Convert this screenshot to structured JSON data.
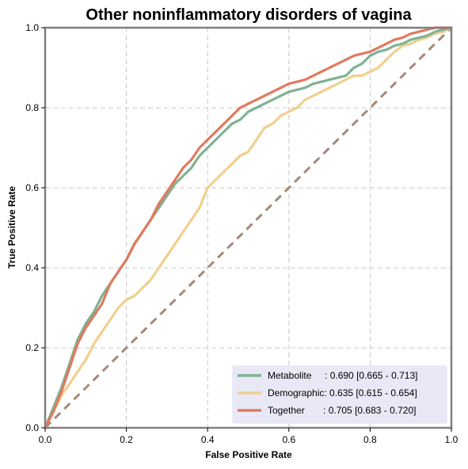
{
  "chart_data": {
    "type": "line",
    "title": "Other noninflammatory disorders of vagina",
    "xlabel": "False Positive Rate",
    "ylabel": "True Positive Rate",
    "xlim": [
      0,
      1
    ],
    "ylim": [
      0,
      1
    ],
    "xticks": [
      "0.0",
      "0.2",
      "0.4",
      "0.6",
      "0.8",
      "1.0"
    ],
    "yticks": [
      "0.0",
      "0.2",
      "0.4",
      "0.6",
      "0.8",
      "1.0"
    ],
    "grid": true,
    "legend_position": "lower-right",
    "series": [
      {
        "name": "Metabolite",
        "legend_label": "Metabolite     : 0.690 [0.665 - 0.713]",
        "color": "#7fb294",
        "x": [
          0,
          0.02,
          0.04,
          0.06,
          0.08,
          0.1,
          0.12,
          0.14,
          0.16,
          0.18,
          0.2,
          0.22,
          0.24,
          0.26,
          0.28,
          0.3,
          0.32,
          0.34,
          0.36,
          0.38,
          0.4,
          0.42,
          0.44,
          0.46,
          0.48,
          0.5,
          0.52,
          0.54,
          0.56,
          0.58,
          0.6,
          0.62,
          0.64,
          0.66,
          0.68,
          0.7,
          0.72,
          0.74,
          0.76,
          0.78,
          0.8,
          0.82,
          0.84,
          0.86,
          0.88,
          0.9,
          0.92,
          0.94,
          0.96,
          0.98,
          1.0
        ],
        "y": [
          0,
          0.05,
          0.1,
          0.16,
          0.22,
          0.26,
          0.29,
          0.33,
          0.36,
          0.39,
          0.42,
          0.46,
          0.49,
          0.52,
          0.55,
          0.58,
          0.61,
          0.63,
          0.65,
          0.68,
          0.7,
          0.72,
          0.74,
          0.76,
          0.77,
          0.79,
          0.8,
          0.81,
          0.82,
          0.83,
          0.84,
          0.845,
          0.85,
          0.86,
          0.865,
          0.87,
          0.875,
          0.88,
          0.9,
          0.91,
          0.93,
          0.94,
          0.945,
          0.955,
          0.96,
          0.97,
          0.975,
          0.98,
          0.99,
          0.995,
          1.0
        ]
      },
      {
        "name": "Demographic",
        "legend_label": "Demographic: 0.635 [0.615 - 0.654]",
        "color": "#f1cf8e",
        "x": [
          0,
          0.02,
          0.04,
          0.06,
          0.08,
          0.1,
          0.12,
          0.14,
          0.16,
          0.18,
          0.2,
          0.22,
          0.24,
          0.26,
          0.28,
          0.3,
          0.32,
          0.34,
          0.36,
          0.38,
          0.4,
          0.42,
          0.44,
          0.46,
          0.48,
          0.5,
          0.52,
          0.54,
          0.56,
          0.58,
          0.6,
          0.62,
          0.64,
          0.66,
          0.68,
          0.7,
          0.72,
          0.74,
          0.76,
          0.78,
          0.8,
          0.82,
          0.84,
          0.86,
          0.88,
          0.9,
          0.92,
          0.94,
          0.96,
          0.98,
          1.0
        ],
        "y": [
          0,
          0.04,
          0.08,
          0.11,
          0.14,
          0.17,
          0.21,
          0.24,
          0.27,
          0.3,
          0.32,
          0.33,
          0.35,
          0.37,
          0.4,
          0.43,
          0.46,
          0.49,
          0.52,
          0.55,
          0.6,
          0.62,
          0.64,
          0.66,
          0.68,
          0.69,
          0.72,
          0.75,
          0.76,
          0.78,
          0.79,
          0.8,
          0.82,
          0.83,
          0.84,
          0.85,
          0.86,
          0.87,
          0.88,
          0.88,
          0.89,
          0.9,
          0.92,
          0.94,
          0.955,
          0.96,
          0.97,
          0.975,
          0.985,
          0.99,
          1.0
        ]
      },
      {
        "name": "Together",
        "legend_label": "Together       : 0.705 [0.683 - 0.720]",
        "color": "#e07a5f",
        "x": [
          0,
          0.02,
          0.04,
          0.06,
          0.08,
          0.1,
          0.12,
          0.14,
          0.16,
          0.18,
          0.2,
          0.22,
          0.24,
          0.26,
          0.28,
          0.3,
          0.32,
          0.34,
          0.36,
          0.38,
          0.4,
          0.42,
          0.44,
          0.46,
          0.48,
          0.5,
          0.52,
          0.54,
          0.56,
          0.58,
          0.6,
          0.62,
          0.64,
          0.66,
          0.68,
          0.7,
          0.72,
          0.74,
          0.76,
          0.78,
          0.8,
          0.82,
          0.84,
          0.86,
          0.88,
          0.9,
          0.92,
          0.94,
          0.96,
          0.98,
          1.0
        ],
        "y": [
          0,
          0.04,
          0.09,
          0.15,
          0.21,
          0.25,
          0.28,
          0.31,
          0.36,
          0.39,
          0.42,
          0.46,
          0.49,
          0.52,
          0.56,
          0.59,
          0.62,
          0.65,
          0.67,
          0.7,
          0.72,
          0.74,
          0.76,
          0.78,
          0.8,
          0.81,
          0.82,
          0.83,
          0.84,
          0.85,
          0.86,
          0.865,
          0.87,
          0.88,
          0.89,
          0.9,
          0.91,
          0.92,
          0.93,
          0.935,
          0.94,
          0.95,
          0.96,
          0.97,
          0.975,
          0.985,
          0.99,
          0.995,
          1.0,
          1.0,
          1.0
        ]
      }
    ],
    "reference_line": {
      "x": [
        0,
        1
      ],
      "y": [
        0,
        1
      ],
      "color": "#a68878",
      "style": "dashed"
    }
  }
}
